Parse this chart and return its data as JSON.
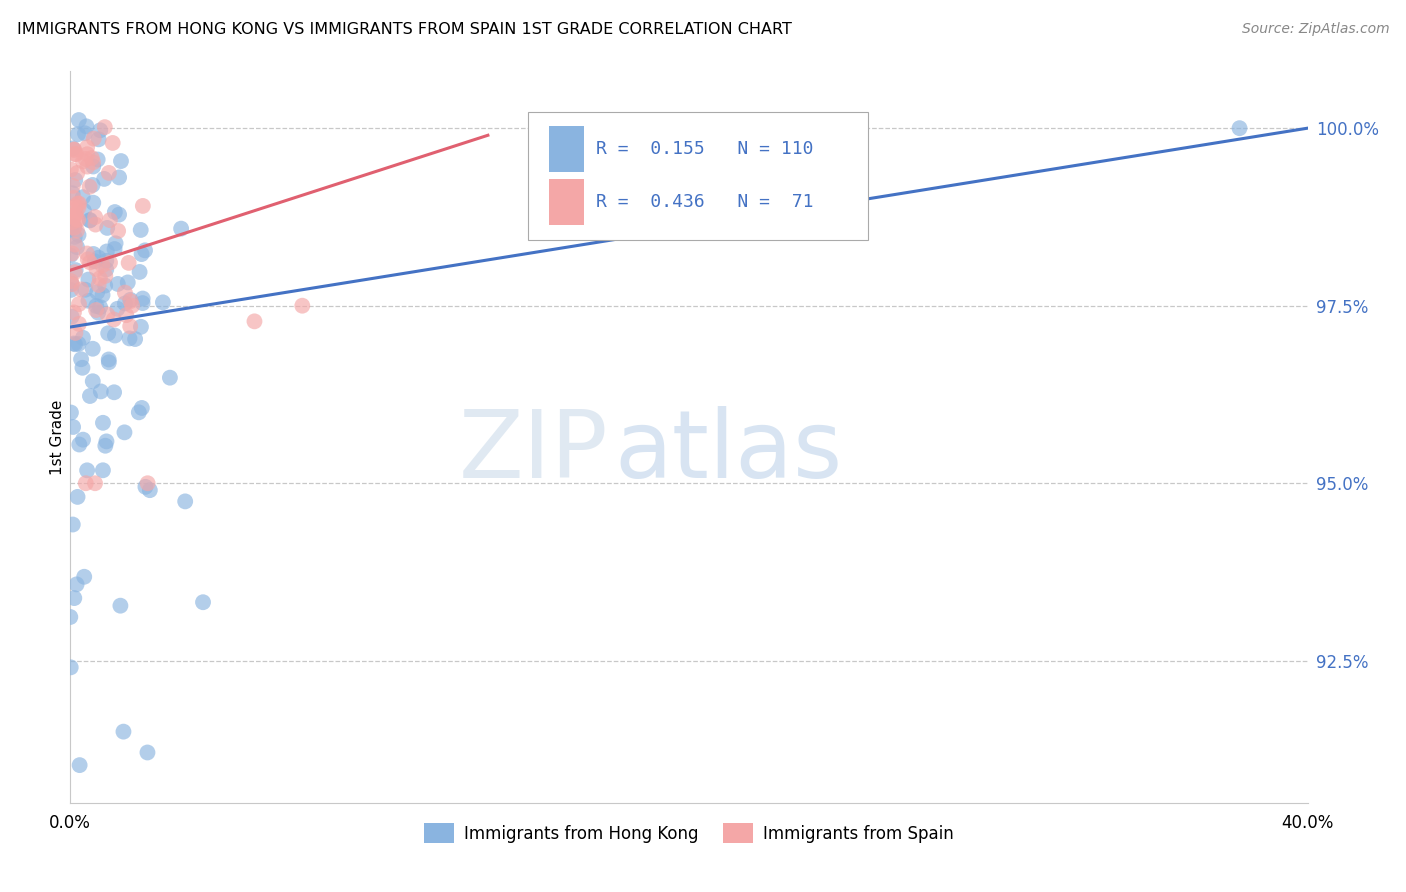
{
  "title": "IMMIGRANTS FROM HONG KONG VS IMMIGRANTS FROM SPAIN 1ST GRADE CORRELATION CHART",
  "source": "Source: ZipAtlas.com",
  "ylabel_label": "1st Grade",
  "y_ticks": [
    1.0,
    0.975,
    0.95,
    0.925
  ],
  "y_tick_labels": [
    "100.0%",
    "97.5%",
    "95.0%",
    "92.5%"
  ],
  "x_min": 0.0,
  "x_max": 0.4,
  "y_min": 0.905,
  "y_max": 1.008,
  "hk_R": 0.155,
  "hk_N": 110,
  "sp_R": 0.436,
  "sp_N": 71,
  "legend_label_hk": "Immigrants from Hong Kong",
  "legend_label_sp": "Immigrants from Spain",
  "hk_color": "#8ab4e0",
  "sp_color": "#f4a7a7",
  "hk_line_color": "#4472c4",
  "sp_line_color": "#e06070",
  "hk_line_x": [
    0.0,
    0.4
  ],
  "hk_line_y": [
    0.972,
    1.0
  ],
  "sp_line_x": [
    0.0,
    0.135
  ],
  "sp_line_y": [
    0.98,
    0.999
  ],
  "watermark_zip": "ZIP",
  "watermark_atlas": "atlas",
  "marker_size": 130,
  "marker_alpha": 0.65
}
